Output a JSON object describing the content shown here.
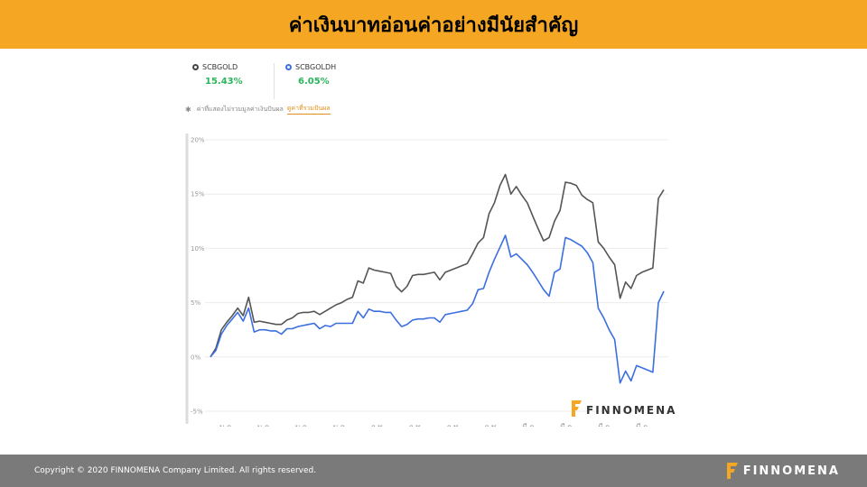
{
  "header": {
    "title": "ค่าเงินบาทอ่อนค่าอย่างมีนัยสำคัญ"
  },
  "legend": [
    {
      "name": "SCBGOLD",
      "value": "15.43%"
    },
    {
      "name": "SCBGOLDH",
      "value": "6.05%"
    }
  ],
  "note": {
    "text": "ค่าที่แสดงไม่รวมมูลค่าเงินปันผล",
    "link": "ดูค่าที่รวมปันผล"
  },
  "colors": {
    "header_bg": "#f5a623",
    "scbgold": "#555555",
    "scbgoldh": "#3b6fe0",
    "positive": "#2ab55a",
    "footer_bg": "#7a7a7a"
  },
  "watermark": {
    "text": "FINNOMENA"
  },
  "footer": {
    "copyright": "Copyright © 2020 FINNOMENA Company Limited. All rights reserved.",
    "logo_text": "FINNOMENA"
  },
  "chart_data": {
    "type": "line",
    "ylim": [
      -5,
      20
    ],
    "y_ticks": [
      -5,
      0,
      5,
      10,
      15,
      20
    ],
    "y_tick_labels": [
      "-5%",
      "0%",
      "5%",
      "10%",
      "15%",
      "20%"
    ],
    "grid": true,
    "x_tick_labels": [
      "ม.ค.",
      "ม.ค.",
      "ม.ค.",
      "ม.ค.",
      "ก.พ.",
      "ก.พ.",
      "ก.พ.",
      "ก.พ.",
      "มี.ค.",
      "มี.ค.",
      "มี.ค.",
      "มี.ค."
    ],
    "series": [
      {
        "name": "SCBGOLD",
        "values": [
          0,
          0.8,
          2.5,
          3.2,
          3.8,
          4.5,
          3.8,
          5.5,
          3.2,
          3.3,
          3.2,
          3.1,
          3.0,
          3.0,
          3.4,
          3.6,
          4.0,
          4.1,
          4.1,
          4.2,
          3.9,
          4.2,
          4.5,
          4.8,
          5.0,
          5.3,
          5.5,
          7.0,
          6.8,
          8.2,
          8.0,
          7.9,
          7.8,
          7.7,
          6.5,
          6.0,
          6.5,
          7.5,
          7.6,
          7.6,
          7.7,
          7.8,
          7.1,
          7.8,
          8.0,
          8.2,
          8.4,
          8.6,
          9.5,
          10.5,
          11.0,
          13.2,
          14.2,
          15.8,
          16.8,
          15.0,
          15.7,
          14.9,
          14.2,
          13.0,
          11.8,
          10.7,
          11.0,
          12.5,
          13.5,
          16.1,
          16.0,
          15.8,
          14.9,
          14.5,
          14.2,
          10.6,
          10.0,
          9.2,
          8.5,
          5.4,
          6.9,
          6.3,
          7.5,
          7.8,
          8.0,
          8.2,
          14.6,
          15.4
        ]
      },
      {
        "name": "SCBGOLDH",
        "values": [
          0,
          0.6,
          2.1,
          2.9,
          3.5,
          4.1,
          3.3,
          4.5,
          2.3,
          2.5,
          2.5,
          2.4,
          2.4,
          2.1,
          2.6,
          2.6,
          2.8,
          2.9,
          3.0,
          3.1,
          2.6,
          2.9,
          2.8,
          3.1,
          3.1,
          3.1,
          3.1,
          4.2,
          3.6,
          4.4,
          4.2,
          4.2,
          4.1,
          4.1,
          3.4,
          2.8,
          3.0,
          3.4,
          3.5,
          3.5,
          3.6,
          3.6,
          3.2,
          3.9,
          4.0,
          4.1,
          4.2,
          4.3,
          4.9,
          6.2,
          6.3,
          7.8,
          9.0,
          10.1,
          11.2,
          9.2,
          9.5,
          9.0,
          8.5,
          7.8,
          7.0,
          6.2,
          5.6,
          7.8,
          8.1,
          11.0,
          10.8,
          10.5,
          10.2,
          9.6,
          8.7,
          4.5,
          3.6,
          2.5,
          1.6,
          -2.4,
          -1.3,
          -2.2,
          -0.8,
          -1.0,
          -1.2,
          -1.4,
          5.0,
          6.05
        ]
      }
    ]
  }
}
